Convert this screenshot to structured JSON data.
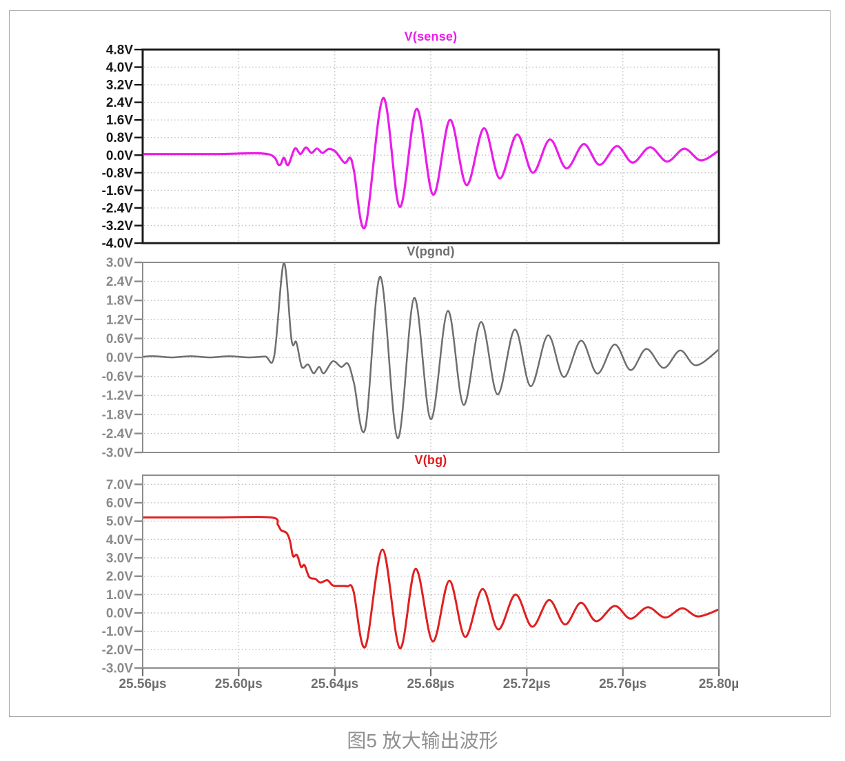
{
  "page": {
    "caption": "图5 放大输出波形"
  },
  "xaxis": {
    "xlim": [
      25.56,
      25.8
    ],
    "unit": "µs",
    "label_color": "#6f6f6f",
    "ticks": [
      {
        "t": 25.56,
        "label": "25.56µs"
      },
      {
        "t": 25.6,
        "label": "25.60µs"
      },
      {
        "t": 25.64,
        "label": "25.64µs"
      },
      {
        "t": 25.68,
        "label": "25.68µs"
      },
      {
        "t": 25.72,
        "label": "25.72µs"
      },
      {
        "t": 25.76,
        "label": "25.76µs"
      },
      {
        "t": 25.8,
        "label": "25.80µ"
      }
    ]
  },
  "chart_data": [
    {
      "type": "line",
      "title": "V(sense)",
      "title_color": "#ea1dea",
      "trace_color": "#ea1dea",
      "axis_label_color": "#161616",
      "border_color": "#1c1c1c",
      "border_width": 3,
      "grid": true,
      "xlim": [
        25.56,
        25.8
      ],
      "ylim": [
        -4.0,
        4.8
      ],
      "y_ticks": [
        {
          "v": 4.8,
          "label": "4.8V"
        },
        {
          "v": 4.0,
          "label": "4.0V"
        },
        {
          "v": 3.2,
          "label": "3.2V"
        },
        {
          "v": 2.4,
          "label": "2.4V"
        },
        {
          "v": 1.6,
          "label": "1.6V"
        },
        {
          "v": 0.8,
          "label": "0.8V"
        },
        {
          "v": 0.0,
          "label": "0.0V"
        },
        {
          "v": -0.8,
          "label": "-0.8V"
        },
        {
          "v": -1.6,
          "label": "-1.6V"
        },
        {
          "v": -2.4,
          "label": "-2.4V"
        },
        {
          "v": -3.2,
          "label": "-3.2V"
        },
        {
          "v": -4.0,
          "label": "-4.0V"
        }
      ],
      "series": [
        {
          "name": "V(sense)",
          "points": [
            [
              25.56,
              0.05
            ],
            [
              25.59,
              0.05
            ],
            [
              25.612,
              0.05
            ],
            [
              25.6168,
              -0.45
            ],
            [
              25.6188,
              -0.12
            ],
            [
              25.6206,
              -0.45
            ],
            [
              25.6234,
              0.3
            ],
            [
              25.6257,
              0.05
            ],
            [
              25.628,
              0.35
            ],
            [
              25.6303,
              0.1
            ],
            [
              25.6326,
              0.3
            ],
            [
              25.6349,
              0.1
            ],
            [
              25.6375,
              0.28
            ],
            [
              25.6404,
              0.15
            ],
            [
              25.6441,
              -0.35
            ],
            [
              25.6464,
              -0.12
            ],
            [
              25.648,
              -0.7
            ],
            [
              25.6527,
              -3.25
            ],
            [
              25.6602,
              2.6
            ],
            [
              25.6671,
              -2.35
            ],
            [
              25.6741,
              2.1
            ],
            [
              25.681,
              -1.8
            ],
            [
              25.688,
              1.6
            ],
            [
              25.6949,
              -1.36
            ],
            [
              25.7021,
              1.22
            ],
            [
              25.7087,
              -1.06
            ],
            [
              25.7159,
              0.94
            ],
            [
              25.7225,
              -0.8
            ],
            [
              25.7296,
              0.71
            ],
            [
              25.7365,
              -0.6
            ],
            [
              25.7437,
              0.5
            ],
            [
              25.7503,
              -0.44
            ],
            [
              25.7575,
              0.41
            ],
            [
              25.7641,
              -0.34
            ],
            [
              25.7713,
              0.36
            ],
            [
              25.7784,
              -0.29
            ],
            [
              25.7856,
              0.29
            ],
            [
              25.7925,
              -0.24
            ],
            [
              25.8,
              0.21
            ]
          ]
        }
      ]
    },
    {
      "type": "line",
      "title": "V(pgnd)",
      "title_color": "#6e6e6e",
      "trace_color": "#6e6e6e",
      "axis_label_color": "#8a8a8a",
      "border_color": "#8c8c8c",
      "border_width": 2,
      "grid": true,
      "xlim": [
        25.56,
        25.8
      ],
      "ylim": [
        -3.0,
        3.0
      ],
      "y_ticks": [
        {
          "v": 3.0,
          "label": "3.0V"
        },
        {
          "v": 2.4,
          "label": "2.4V"
        },
        {
          "v": 1.8,
          "label": "1.8V"
        },
        {
          "v": 1.2,
          "label": "1.2V"
        },
        {
          "v": 0.6,
          "label": "0.6V"
        },
        {
          "v": 0.0,
          "label": "0.0V"
        },
        {
          "v": -0.6,
          "label": "-0.6V"
        },
        {
          "v": -1.2,
          "label": "-1.2V"
        },
        {
          "v": -1.8,
          "label": "-1.8V"
        },
        {
          "v": -2.4,
          "label": "-2.4V"
        },
        {
          "v": -3.0,
          "label": "-3.0V"
        }
      ],
      "series": [
        {
          "name": "V(pgnd)",
          "points": [
            [
              25.56,
              0.02
            ],
            [
              25.565,
              0.04
            ],
            [
              25.572,
              0.0
            ],
            [
              25.58,
              0.04
            ],
            [
              25.588,
              0.0
            ],
            [
              25.596,
              0.04
            ],
            [
              25.604,
              0.0
            ],
            [
              25.611,
              0.03
            ],
            [
              25.6148,
              0.05
            ],
            [
              25.6188,
              2.98
            ],
            [
              25.622,
              0.55
            ],
            [
              25.624,
              0.48
            ],
            [
              25.6263,
              -0.3
            ],
            [
              25.6289,
              -0.22
            ],
            [
              25.6312,
              -0.5
            ],
            [
              25.6335,
              -0.3
            ],
            [
              25.6355,
              -0.5
            ],
            [
              25.6392,
              -0.12
            ],
            [
              25.6427,
              -0.3
            ],
            [
              25.6455,
              -0.2
            ],
            [
              25.648,
              -0.8
            ],
            [
              25.6527,
              -2.25
            ],
            [
              25.659,
              2.55
            ],
            [
              25.6662,
              -2.55
            ],
            [
              25.6731,
              1.88
            ],
            [
              25.68,
              -1.95
            ],
            [
              25.6871,
              1.47
            ],
            [
              25.6937,
              -1.5
            ],
            [
              25.7009,
              1.12
            ],
            [
              25.7078,
              -1.17
            ],
            [
              25.715,
              0.88
            ],
            [
              25.7216,
              -0.91
            ],
            [
              25.7288,
              0.7
            ],
            [
              25.7354,
              -0.62
            ],
            [
              25.7426,
              0.53
            ],
            [
              25.7494,
              -0.51
            ],
            [
              25.7566,
              0.41
            ],
            [
              25.7632,
              -0.4
            ],
            [
              25.7698,
              0.27
            ],
            [
              25.777,
              -0.33
            ],
            [
              25.7839,
              0.22
            ],
            [
              25.7905,
              -0.25
            ],
            [
              25.8,
              0.25
            ]
          ]
        }
      ]
    },
    {
      "type": "line",
      "title": "V(bg)",
      "title_color": "#e31b1b",
      "trace_color": "#e02020",
      "axis_label_color": "#8a8a8a",
      "border_color": "#8c8c8c",
      "border_width": 2,
      "grid": true,
      "xlim": [
        25.56,
        25.8
      ],
      "ylim": [
        -3.0,
        7.5
      ],
      "y_ticks": [
        {
          "v": 7.0,
          "label": "7.0V"
        },
        {
          "v": 6.0,
          "label": "6.0V"
        },
        {
          "v": 5.0,
          "label": "5.0V"
        },
        {
          "v": 4.0,
          "label": "4.0V"
        },
        {
          "v": 3.0,
          "label": "3.0V"
        },
        {
          "v": 2.0,
          "label": "2.0V"
        },
        {
          "v": 1.0,
          "label": "1.0V"
        },
        {
          "v": 0.0,
          "label": "0.0V"
        },
        {
          "v": -1.0,
          "label": "-1.0V"
        },
        {
          "v": -2.0,
          "label": "-2.0V"
        },
        {
          "v": -3.0,
          "label": "-3.0V"
        }
      ],
      "series": [
        {
          "name": "V(bg)",
          "points": [
            [
              25.56,
              5.2
            ],
            [
              25.59,
              5.2
            ],
            [
              25.6135,
              5.2
            ],
            [
              25.6163,
              4.8
            ],
            [
              25.6177,
              4.5
            ],
            [
              25.62,
              4.35
            ],
            [
              25.6214,
              3.9
            ],
            [
              25.6226,
              3.1
            ],
            [
              25.6243,
              3.15
            ],
            [
              25.626,
              2.5
            ],
            [
              25.6274,
              2.6
            ],
            [
              25.6294,
              1.95
            ],
            [
              25.632,
              1.85
            ],
            [
              25.634,
              1.65
            ],
            [
              25.6369,
              1.78
            ],
            [
              25.6392,
              1.5
            ],
            [
              25.642,
              1.47
            ],
            [
              25.6452,
              1.45
            ],
            [
              25.6478,
              1.2
            ],
            [
              25.6527,
              -1.85
            ],
            [
              25.6599,
              3.45
            ],
            [
              25.6671,
              -1.92
            ],
            [
              25.6737,
              2.4
            ],
            [
              25.6808,
              -1.55
            ],
            [
              25.6877,
              1.75
            ],
            [
              25.6943,
              -1.3
            ],
            [
              25.7015,
              1.3
            ],
            [
              25.7081,
              -0.9
            ],
            [
              25.7153,
              1.0
            ],
            [
              25.7222,
              -0.75
            ],
            [
              25.7293,
              0.7
            ],
            [
              25.7359,
              -0.63
            ],
            [
              25.7425,
              0.55
            ],
            [
              25.7489,
              -0.45
            ],
            [
              25.7566,
              0.38
            ],
            [
              25.7632,
              -0.31
            ],
            [
              25.7704,
              0.31
            ],
            [
              25.7776,
              -0.25
            ],
            [
              25.7847,
              0.25
            ],
            [
              25.7913,
              -0.19
            ],
            [
              25.8,
              0.19
            ]
          ]
        }
      ]
    }
  ]
}
